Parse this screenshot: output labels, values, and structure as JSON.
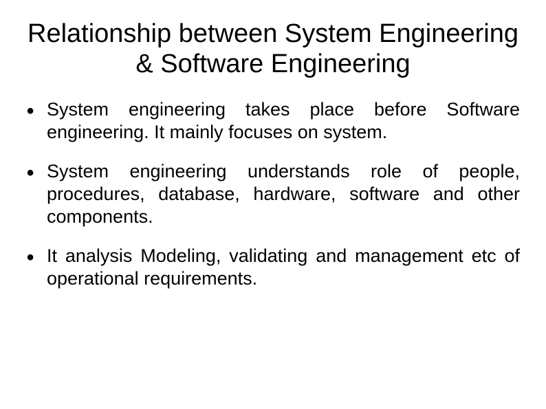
{
  "slide": {
    "title": "Relationship between System Engineering & Software Engineering",
    "title_fontsize": 38,
    "body_fontsize": 27,
    "background_color": "#ffffff",
    "text_color": "#000000",
    "font_family": "Arial",
    "bullets": [
      {
        "marker": "●",
        "text": "System engineering takes place before Software engineering. It mainly focuses on system."
      },
      {
        "marker": "●",
        "text": "System engineering understands role of people, procedures, database, hardware, software and other components."
      },
      {
        "marker": "●",
        "text": "It analysis Modeling, validating and management etc of operational requirements."
      }
    ]
  }
}
